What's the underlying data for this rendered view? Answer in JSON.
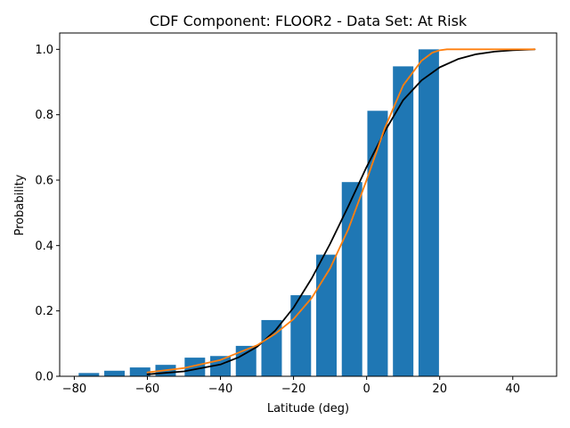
{
  "chart_data": {
    "type": "bar",
    "title": "CDF Component: FLOOR2 - Data Set: At Risk",
    "xlabel": "Latitude (deg)",
    "ylabel": "Probability",
    "xlim": [
      -84,
      52
    ],
    "ylim": [
      0,
      1.05
    ],
    "xticks": [
      -80,
      -60,
      -40,
      -20,
      0,
      20,
      40
    ],
    "xtick_labels": [
      "−80",
      "−60",
      "−40",
      "−20",
      "0",
      "20",
      "40"
    ],
    "yticks": [
      0,
      0.2,
      0.4,
      0.6,
      0.8,
      1.0
    ],
    "ytick_labels": [
      "0.0",
      "0.2",
      "0.4",
      "0.6",
      "0.8",
      "1.0"
    ],
    "grid": false,
    "bar_color": "#1f77b4",
    "bar_width": 5.6,
    "bars": {
      "x": [
        -76,
        -69,
        -62,
        -55,
        -47,
        -40,
        -33,
        -26,
        -18,
        -11,
        -4,
        3,
        10,
        17
      ],
      "values": [
        0.01,
        0.017,
        0.027,
        0.035,
        0.057,
        0.062,
        0.093,
        0.172,
        0.248,
        0.372,
        0.594,
        0.812,
        0.948,
        1.0
      ]
    },
    "series": [
      {
        "type": "line",
        "color": "#000000",
        "x": [
          -60,
          -50,
          -40,
          -35,
          -30,
          -25,
          -20,
          -15,
          -10,
          -5,
          0,
          5,
          10,
          15,
          20,
          25,
          30,
          35,
          40,
          46
        ],
        "values": [
          0.006,
          0.015,
          0.036,
          0.058,
          0.09,
          0.14,
          0.21,
          0.3,
          0.405,
          0.52,
          0.64,
          0.75,
          0.845,
          0.905,
          0.945,
          0.97,
          0.985,
          0.993,
          0.997,
          1.0
        ]
      },
      {
        "type": "line",
        "color": "#ff7f0e",
        "x": [
          -60,
          -50,
          -40,
          -30,
          -25,
          -20,
          -15,
          -10,
          -5,
          0,
          5,
          10,
          15,
          18,
          20,
          22,
          25,
          30,
          40,
          46
        ],
        "values": [
          0.012,
          0.025,
          0.05,
          0.095,
          0.13,
          0.175,
          0.24,
          0.33,
          0.45,
          0.6,
          0.76,
          0.89,
          0.965,
          0.99,
          0.997,
          1.0,
          1.0,
          1.0,
          1.0,
          1.0
        ]
      }
    ]
  }
}
